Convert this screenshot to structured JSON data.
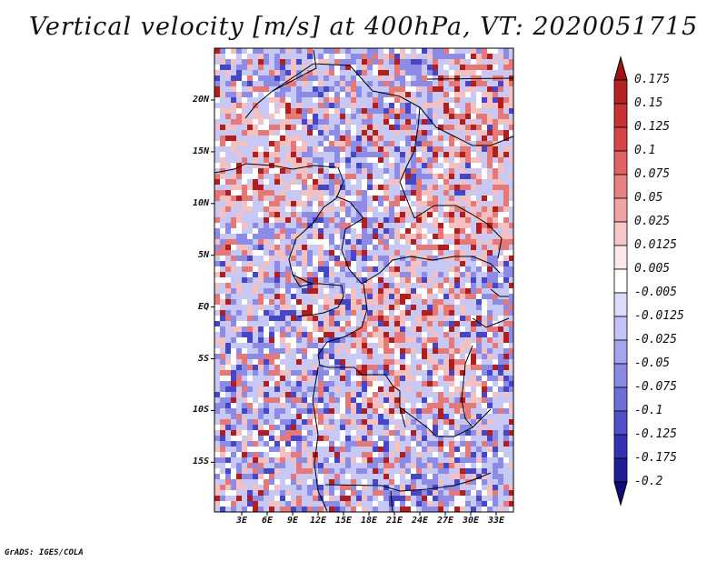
{
  "title": "Vertical velocity [m/s] at 400hPa, VT: 2020051715",
  "credit": "GrADS: IGES/COLA",
  "map": {
    "lat_labels": [
      "20N",
      "15N",
      "10N",
      "5N",
      "EQ",
      "5S",
      "10S",
      "15S"
    ],
    "lon_labels": [
      "3E",
      "6E",
      "9E",
      "12E",
      "15E",
      "18E",
      "21E",
      "24E",
      "27E",
      "30E",
      "33E"
    ],
    "lon_range": [
      0,
      35
    ],
    "lat_range": [
      -20,
      25
    ]
  },
  "colorbar": {
    "labels": [
      "0.175",
      "0.15",
      "0.125",
      "0.1",
      "0.075",
      "0.05",
      "0.025",
      "0.0125",
      "0.005",
      "-0.005",
      "-0.0125",
      "-0.025",
      "-0.05",
      "-0.075",
      "-0.1",
      "-0.125",
      "-0.175",
      "-0.2"
    ],
    "colors": [
      "#a01414",
      "#b42323",
      "#c83232",
      "#d64646",
      "#e06262",
      "#e88282",
      "#f0a3a3",
      "#f7c7c7",
      "#fce8e8",
      "#ffffff",
      "#dcdcfa",
      "#c3c3f5",
      "#a5a5ef",
      "#8a8ae6",
      "#6e6ed9",
      "#5050cc",
      "#3232b3",
      "#1e1e96",
      "#0f0f78"
    ]
  },
  "field_palette": {
    "strong_up": "#b21e1e",
    "up": "#e67878",
    "weak_up": "#f5c0c0",
    "neutral": "#ffffff",
    "weak_down": "#c8c8f5",
    "down": "#8c8ce6",
    "strong_down": "#4646c8"
  }
}
